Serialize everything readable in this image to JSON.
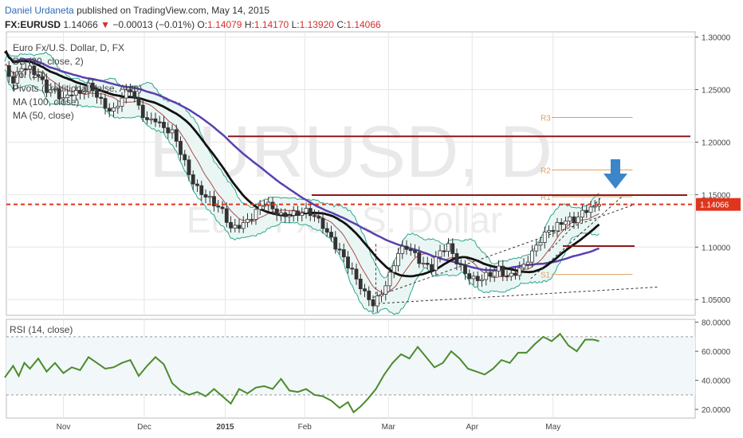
{
  "header": {
    "author": "Daniel Urdaneta",
    "published": "published on TradingView.com, May 14, 2015",
    "symbol": "FX:EURUSD",
    "last": "1.14066",
    "change_arrow": "▼",
    "change": "−0.00013 (−0.01%)",
    "o_label": "O:",
    "o": "1.14079",
    "h_label": "H:",
    "h": "1.14170",
    "l_label": "L:",
    "l": "1.13920",
    "c_label": "C:",
    "c": "1.14066"
  },
  "legend": {
    "items": [
      "Euro Fx/U.S. Dollar, D, FX",
      "BB (20, close, 2)",
      "Vol (20)",
      "Pivots (Traditional, false, Auto)",
      "MA (100, close)",
      "MA (50, close)"
    ]
  },
  "watermark": {
    "big": "EURUSD, D",
    "small": "Euro Fx/U.S. Dollar"
  },
  "rsi_label": "RSI (14, close)",
  "colors": {
    "candle": "#333333",
    "bb": "#2ca58d",
    "bb_fill": "#eaf6f4",
    "ma100": "#5b3fb0",
    "ma50": "#111111",
    "ma20": "#b34a4a",
    "resistance": "#8b1a1a",
    "current": "#e0351d",
    "pivot": "#e0a060",
    "rsi": "#4b8b2b",
    "axis": "#555555",
    "grid": "#e6e6e6",
    "arrow": "#3a86c8"
  },
  "chart_data": [
    {
      "type": "candlestick",
      "title": "Euro Fx/U.S. Dollar, D, FX",
      "x_ticks": [
        "Nov",
        "Dec",
        "2015",
        "Feb",
        "Mar",
        "Apr",
        "May"
      ],
      "y_ticks": [
        "1.30000",
        "1.25000",
        "1.20000",
        "1.15000",
        "1.10000",
        "1.05000"
      ],
      "ylim": [
        1.035,
        1.305
      ],
      "last_price": 1.14066,
      "last_price_label": "1.14066",
      "price_path": [
        [
          0,
          1.27
        ],
        [
          6,
          1.262
        ],
        [
          12,
          1.275
        ],
        [
          18,
          1.268
        ],
        [
          24,
          1.258
        ],
        [
          30,
          1.248
        ],
        [
          36,
          1.252
        ],
        [
          42,
          1.245
        ],
        [
          48,
          1.248
        ],
        [
          54,
          1.242
        ],
        [
          60,
          1.25
        ],
        [
          66,
          1.246
        ],
        [
          72,
          1.238
        ],
        [
          78,
          1.232
        ],
        [
          84,
          1.24
        ],
        [
          90,
          1.246
        ],
        [
          96,
          1.232
        ],
        [
          102,
          1.224
        ],
        [
          108,
          1.226
        ],
        [
          114,
          1.212
        ],
        [
          120,
          1.205
        ],
        [
          126,
          1.188
        ],
        [
          132,
          1.172
        ],
        [
          138,
          1.16
        ],
        [
          144,
          1.15
        ],
        [
          150,
          1.138
        ],
        [
          156,
          1.13
        ],
        [
          162,
          1.118
        ],
        [
          168,
          1.125
        ],
        [
          174,
          1.128
        ],
        [
          180,
          1.132
        ],
        [
          186,
          1.138
        ],
        [
          192,
          1.135
        ],
        [
          198,
          1.133
        ],
        [
          204,
          1.136
        ],
        [
          210,
          1.132
        ],
        [
          216,
          1.13
        ],
        [
          222,
          1.126
        ],
        [
          228,
          1.122
        ],
        [
          234,
          1.112
        ],
        [
          240,
          1.098
        ],
        [
          246,
          1.08
        ],
        [
          252,
          1.065
        ],
        [
          258,
          1.055
        ],
        [
          264,
          1.05
        ],
        [
          270,
          1.06
        ],
        [
          276,
          1.072
        ],
        [
          282,
          1.09
        ],
        [
          288,
          1.098
        ],
        [
          294,
          1.095
        ],
        [
          300,
          1.088
        ],
        [
          306,
          1.082
        ],
        [
          312,
          1.092
        ],
        [
          318,
          1.097
        ],
        [
          324,
          1.087
        ],
        [
          330,
          1.08
        ],
        [
          336,
          1.072
        ],
        [
          342,
          1.068
        ],
        [
          348,
          1.07
        ],
        [
          354,
          1.078
        ],
        [
          360,
          1.075
        ],
        [
          366,
          1.08
        ],
        [
          372,
          1.082
        ],
        [
          378,
          1.09
        ],
        [
          384,
          1.104
        ],
        [
          390,
          1.118
        ],
        [
          396,
          1.125
        ],
        [
          402,
          1.128
        ],
        [
          408,
          1.122
        ],
        [
          414,
          1.128
        ],
        [
          420,
          1.138
        ],
        [
          426,
          1.14
        ]
      ],
      "pivots": [
        {
          "label": "R3",
          "value": 1.2235
        },
        {
          "label": "R2",
          "value": 1.1735
        },
        {
          "label": "R1",
          "value": 1.148
        },
        {
          "label": "S1",
          "value": 1.074
        }
      ],
      "resistance_lines": [
        1.2055,
        1.1495
      ],
      "support_line": 1.101
    },
    {
      "type": "line",
      "title": "RSI (14, close)",
      "y_ticks": [
        "80.0000",
        "60.0000",
        "40.0000",
        "20.0000"
      ],
      "ylim": [
        14,
        82
      ],
      "bands": [
        70,
        30
      ],
      "values": [
        [
          0,
          42
        ],
        [
          6,
          50
        ],
        [
          10,
          43
        ],
        [
          14,
          52
        ],
        [
          18,
          48
        ],
        [
          24,
          55
        ],
        [
          30,
          46
        ],
        [
          36,
          52
        ],
        [
          42,
          45
        ],
        [
          48,
          49
        ],
        [
          54,
          47
        ],
        [
          60,
          56
        ],
        [
          66,
          52
        ],
        [
          72,
          48
        ],
        [
          78,
          49
        ],
        [
          84,
          52
        ],
        [
          90,
          54
        ],
        [
          96,
          43
        ],
        [
          102,
          50
        ],
        [
          108,
          56
        ],
        [
          114,
          51
        ],
        [
          120,
          38
        ],
        [
          126,
          33
        ],
        [
          132,
          30
        ],
        [
          138,
          32
        ],
        [
          144,
          29
        ],
        [
          150,
          34
        ],
        [
          156,
          29
        ],
        [
          162,
          24
        ],
        [
          168,
          34
        ],
        [
          174,
          31
        ],
        [
          180,
          35
        ],
        [
          186,
          36
        ],
        [
          192,
          34
        ],
        [
          198,
          41
        ],
        [
          204,
          33
        ],
        [
          210,
          32
        ],
        [
          216,
          34
        ],
        [
          222,
          30
        ],
        [
          228,
          29
        ],
        [
          234,
          26
        ],
        [
          240,
          21
        ],
        [
          246,
          25
        ],
        [
          250,
          18
        ],
        [
          255,
          22
        ],
        [
          260,
          27
        ],
        [
          266,
          34
        ],
        [
          272,
          44
        ],
        [
          278,
          52
        ],
        [
          284,
          58
        ],
        [
          290,
          55
        ],
        [
          296,
          63
        ],
        [
          302,
          56
        ],
        [
          308,
          49
        ],
        [
          314,
          52
        ],
        [
          320,
          60
        ],
        [
          326,
          55
        ],
        [
          332,
          48
        ],
        [
          338,
          46
        ],
        [
          344,
          44
        ],
        [
          350,
          48
        ],
        [
          356,
          54
        ],
        [
          362,
          52
        ],
        [
          368,
          59
        ],
        [
          374,
          59
        ],
        [
          380,
          65
        ],
        [
          386,
          70
        ],
        [
          392,
          67
        ],
        [
          398,
          72
        ],
        [
          404,
          64
        ],
        [
          410,
          60
        ],
        [
          416,
          68
        ],
        [
          422,
          68
        ],
        [
          426,
          67
        ]
      ]
    }
  ]
}
